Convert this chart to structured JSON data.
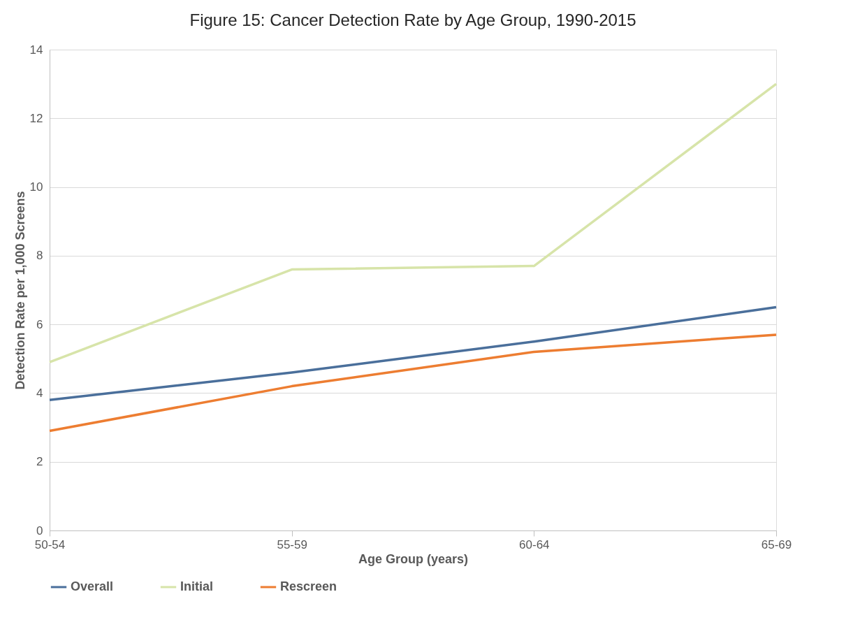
{
  "chart_data": {
    "type": "line",
    "title": "Figure 15: Cancer Detection Rate by Age Group, 1990-2015",
    "xlabel": "Age Group (years)",
    "ylabel": "Detection Rate per 1,000 Screens",
    "categories": [
      "50-54",
      "55-59",
      "60-64",
      "65-69"
    ],
    "series": [
      {
        "name": "Overall",
        "color": "#4a6f9b",
        "values": [
          3.8,
          4.6,
          5.5,
          6.5
        ]
      },
      {
        "name": "Initial",
        "color": "#d7e4a9",
        "values": [
          4.9,
          7.6,
          7.7,
          13.0
        ]
      },
      {
        "name": "Rescreen",
        "color": "#ed7d31",
        "values": [
          2.9,
          4.2,
          5.2,
          5.7
        ]
      }
    ],
    "ylim": [
      0,
      14
    ],
    "yticks": [
      0,
      2,
      4,
      6,
      8,
      10,
      12,
      14
    ],
    "grid": "y",
    "legend": "bottom",
    "line_style": "solid",
    "marker": "none"
  }
}
